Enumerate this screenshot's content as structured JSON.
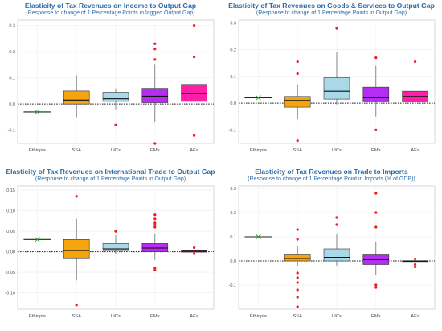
{
  "chart_data": [
    {
      "type": "box",
      "title": "Elasticity of Tax Revenues on Income to Output Gap",
      "subtitle": "(Response to change of 1 Percentage Points in lagged Output Gap)",
      "ylim": [
        -0.15,
        0.32
      ],
      "yticks": [
        -0.1,
        0.0,
        0.1,
        0.2,
        0.3
      ],
      "ytick_labels": [
        "-0.1",
        "0.0",
        "0.1",
        "0.2",
        "0.3"
      ],
      "categories": [
        "Ethiopia",
        "SSA",
        "LICs",
        "EMs",
        "AEs"
      ],
      "reference_line": 0,
      "grid": true,
      "groups": [
        {
          "name": "Ethiopia",
          "color": "#000000",
          "point": -0.03
        },
        {
          "name": "SSA",
          "color": "#f5a40d",
          "q1": 0.0,
          "median": 0.015,
          "q3": 0.05,
          "whisker_low": -0.05,
          "whisker_high": 0.11,
          "outliers": []
        },
        {
          "name": "LICs",
          "color": "#a9d8e8",
          "q1": 0.01,
          "median": 0.02,
          "q3": 0.045,
          "whisker_low": -0.02,
          "whisker_high": 0.06,
          "outliers": [
            -0.08
          ]
        },
        {
          "name": "EMs",
          "color": "#b52cf2",
          "q1": 0.005,
          "median": 0.03,
          "q3": 0.06,
          "whisker_low": -0.07,
          "whisker_high": 0.15,
          "outliers": [
            0.23,
            0.21,
            0.17,
            -0.15
          ]
        },
        {
          "name": "AEs",
          "color": "#ff1ea8",
          "q1": 0.01,
          "median": 0.04,
          "q3": 0.075,
          "whisker_low": -0.06,
          "whisker_high": 0.15,
          "outliers": [
            0.3,
            0.18,
            -0.12
          ]
        }
      ]
    },
    {
      "type": "box",
      "title": "Elasticity of Tax Revenues on Goods & Services to Output Gap",
      "subtitle": "(Response to change of 1 Percentage Points in Output Gap)",
      "ylim": [
        -0.15,
        0.31
      ],
      "yticks": [
        -0.1,
        0.0,
        0.1,
        0.2,
        0.3
      ],
      "ytick_labels": [
        "-0.1",
        "0.0",
        "0.1",
        "0.2",
        "0.3"
      ],
      "categories": [
        "Ethiopia",
        "SSA",
        "LICs",
        "EMs",
        "AEs"
      ],
      "reference_line": 0,
      "grid": true,
      "groups": [
        {
          "name": "Ethiopia",
          "color": "#000000",
          "point": 0.02
        },
        {
          "name": "SSA",
          "color": "#f5a40d",
          "q1": -0.015,
          "median": 0.01,
          "q3": 0.025,
          "whisker_low": -0.06,
          "whisker_high": 0.07,
          "outliers": [
            0.155,
            0.11,
            -0.14
          ]
        },
        {
          "name": "LICs",
          "color": "#a9d8e8",
          "q1": 0.015,
          "median": 0.045,
          "q3": 0.095,
          "whisker_low": -0.005,
          "whisker_high": 0.19,
          "outliers": [
            0.28
          ]
        },
        {
          "name": "EMs",
          "color": "#b52cf2",
          "q1": 0.005,
          "median": 0.02,
          "q3": 0.06,
          "whisker_low": -0.05,
          "whisker_high": 0.14,
          "outliers": [
            0.17,
            -0.1
          ]
        },
        {
          "name": "AEs",
          "color": "#ff1ea8",
          "q1": 0.005,
          "median": 0.025,
          "q3": 0.045,
          "whisker_low": -0.02,
          "whisker_high": 0.09,
          "outliers": [
            0.155
          ]
        }
      ]
    },
    {
      "type": "box",
      "title": "Elasticity of Tax Revenues on International Trade to Output Gap",
      "subtitle": "(Response to change of 1 Percentage Points in Output Gap)",
      "ylim": [
        -0.14,
        0.16
      ],
      "yticks": [
        -0.1,
        -0.05,
        0.0,
        0.05,
        0.1,
        0.15
      ],
      "ytick_labels": [
        "-0.10",
        "-0.05",
        "0.00",
        "0.05",
        "0.10",
        "0.15"
      ],
      "categories": [
        "Ethiopia",
        "SSA",
        "LICs",
        "EMs",
        "AEs"
      ],
      "reference_line": 0,
      "grid": true,
      "groups": [
        {
          "name": "Ethiopia",
          "color": "#000000",
          "point": 0.03
        },
        {
          "name": "SSA",
          "color": "#f5a40d",
          "q1": -0.015,
          "median": 0.003,
          "q3": 0.03,
          "whisker_low": -0.07,
          "whisker_high": 0.08,
          "outliers": [
            0.135,
            -0.13
          ]
        },
        {
          "name": "LICs",
          "color": "#a9d8e8",
          "q1": 0.003,
          "median": 0.007,
          "q3": 0.02,
          "whisker_low": -0.005,
          "whisker_high": 0.04,
          "outliers": [
            0.05
          ]
        },
        {
          "name": "EMs",
          "color": "#b52cf2",
          "q1": 0.0,
          "median": 0.009,
          "q3": 0.02,
          "whisker_low": -0.02,
          "whisker_high": 0.045,
          "outliers": [
            0.09,
            0.08,
            0.07,
            0.065,
            0.06,
            -0.04,
            -0.045
          ]
        },
        {
          "name": "AEs",
          "color": "#ff1ea8",
          "q1": -0.001,
          "median": 0.001,
          "q3": 0.003,
          "whisker_low": -0.004,
          "whisker_high": 0.005,
          "outliers": [
            0.01,
            -0.005
          ]
        }
      ]
    },
    {
      "type": "box",
      "title": "Elasticity of Tax Revenues on Trade to Imports",
      "subtitle": "(Response to change of 1 Percentage Point in Imports (% of GDP))",
      "ylim": [
        -0.2,
        0.31
      ],
      "yticks": [
        -0.1,
        0.0,
        0.1,
        0.2,
        0.3
      ],
      "ytick_labels": [
        "-0.1",
        "0.0",
        "0.1",
        "0.2",
        "0.3"
      ],
      "categories": [
        "Ethiopia",
        "SSA",
        "LICs",
        "EMs",
        "AEs"
      ],
      "reference_line": 0,
      "grid": true,
      "groups": [
        {
          "name": "Ethiopia",
          "color": "#000000",
          "point": 0.1
        },
        {
          "name": "SSA",
          "color": "#f5a40d",
          "q1": 0.0,
          "median": 0.01,
          "q3": 0.025,
          "whisker_low": -0.02,
          "whisker_high": 0.06,
          "outliers": [
            0.13,
            0.09,
            -0.05,
            -0.07,
            -0.09,
            -0.12,
            -0.15,
            -0.19
          ]
        },
        {
          "name": "LICs",
          "color": "#a9d8e8",
          "q1": 0.0,
          "median": 0.015,
          "q3": 0.05,
          "whisker_low": -0.02,
          "whisker_high": 0.11,
          "outliers": [
            0.18,
            0.15
          ]
        },
        {
          "name": "EMs",
          "color": "#b52cf2",
          "q1": -0.015,
          "median": 0.005,
          "q3": 0.025,
          "whisker_low": -0.06,
          "whisker_high": 0.08,
          "outliers": [
            0.28,
            0.2,
            0.14,
            -0.1,
            -0.11
          ]
        },
        {
          "name": "AEs",
          "color": "#ff1ea8",
          "q1": -0.003,
          "median": -0.001,
          "q3": 0.001,
          "whisker_low": -0.005,
          "whisker_high": 0.003,
          "outliers": [
            0.008,
            -0.015,
            -0.025
          ]
        }
      ]
    }
  ]
}
